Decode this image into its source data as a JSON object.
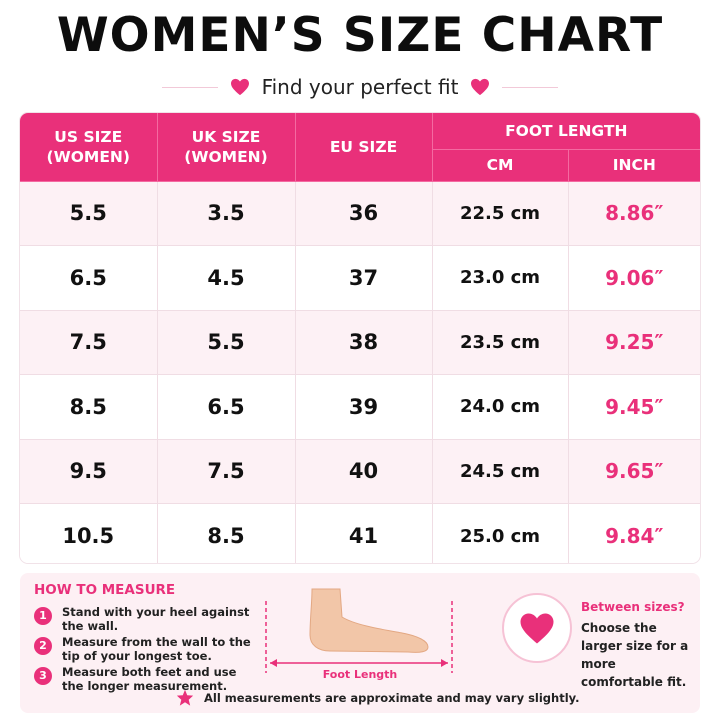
{
  "title": "WOMEN’S SIZE CHART",
  "subtitle": "Find your perfect fit",
  "colors": {
    "accent": "#e9307a",
    "row_alt": "#fdf1f5",
    "panel": "#fdf0f4"
  },
  "table": {
    "headers": {
      "us": "US SIZE\n(WOMEN)",
      "uk": "UK SIZE\n(WOMEN)",
      "eu": "EU SIZE",
      "foot_length": "FOOT LENGTH",
      "cm": "CM",
      "inch": "INCH"
    },
    "rows": [
      {
        "us": "5.5",
        "uk": "3.5",
        "eu": "36",
        "cm": "22.5 cm",
        "inch": "8.86″"
      },
      {
        "us": "6.5",
        "uk": "4.5",
        "eu": "37",
        "cm": "23.0 cm",
        "inch": "9.06″"
      },
      {
        "us": "7.5",
        "uk": "5.5",
        "eu": "38",
        "cm": "23.5 cm",
        "inch": "9.25″"
      },
      {
        "us": "8.5",
        "uk": "6.5",
        "eu": "39",
        "cm": "24.0 cm",
        "inch": "9.45″"
      },
      {
        "us": "9.5",
        "uk": "7.5",
        "eu": "40",
        "cm": "24.5 cm",
        "inch": "9.65″"
      },
      {
        "us": "10.5",
        "uk": "8.5",
        "eu": "41",
        "cm": "25.0 cm",
        "inch": "9.84″"
      }
    ]
  },
  "how_to_measure": {
    "title": "HOW TO MEASURE",
    "steps": [
      {
        "num": "1",
        "text": "Stand with your heel against the wall."
      },
      {
        "num": "2",
        "text": "Measure from the wall to the tip of your longest toe."
      },
      {
        "num": "3",
        "text": "Measure both feet and use the longer measurement."
      }
    ],
    "foot_label": "Foot Length"
  },
  "between_sizes": {
    "title": "Between sizes?",
    "text": "Choose the larger size for a more comfortable fit."
  },
  "note": "All measurements are approximate and may vary slightly.",
  "icons": {
    "heart": "heart-icon",
    "star": "star-icon",
    "foot": "foot-icon"
  }
}
